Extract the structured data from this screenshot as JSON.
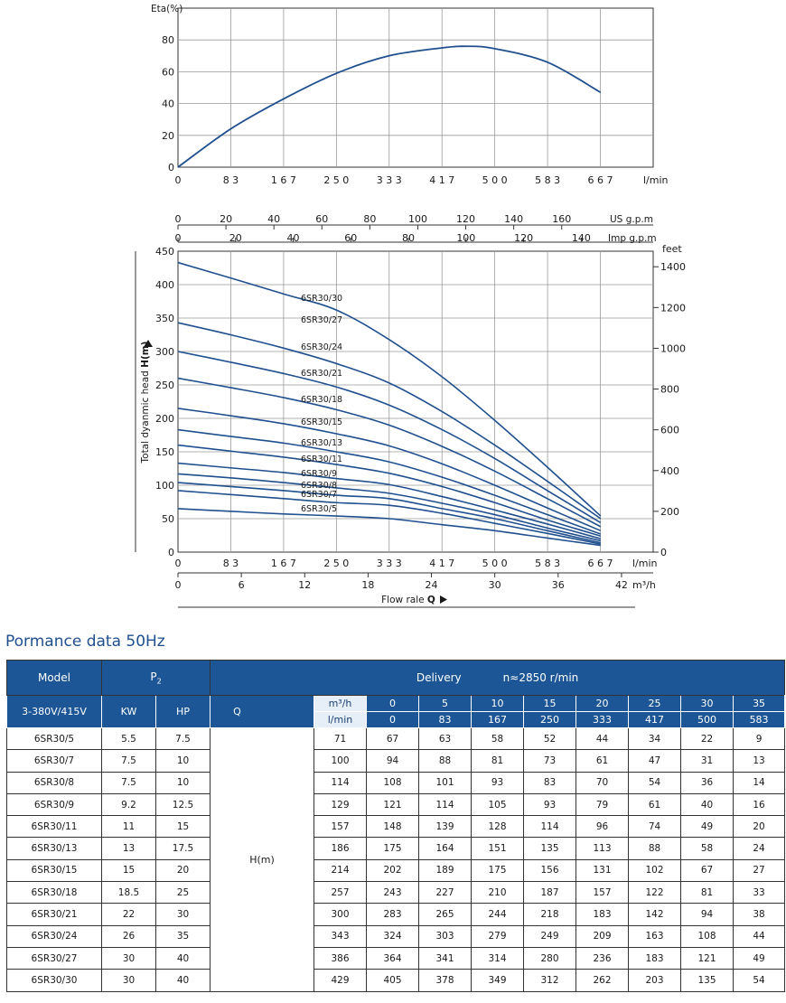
{
  "eff_chart": {
    "ylabel": "Eta(%)",
    "xunit": "l/min",
    "yticks": [
      0,
      20,
      40,
      60,
      80
    ],
    "ylim": [
      0,
      100
    ],
    "xticks": [
      "0",
      "8 3",
      "1 6 7",
      "2 5 0",
      "3 3 3",
      "4 1 7",
      "5 0 0",
      "5 8 3",
      "6 6 7"
    ]
  },
  "head_chart": {
    "usgpm_label": "US g.p.m",
    "usgpm_ticks": [
      "0",
      "20",
      "40",
      "60",
      "80",
      "100",
      "120",
      "140",
      "160"
    ],
    "impgpm_label": "Imp g.p.m",
    "impgpm_ticks": [
      "0",
      "20",
      "40",
      "60",
      "80",
      "100",
      "120",
      "140"
    ],
    "feet_label": "feet",
    "feet_ticks": [
      "0",
      "200",
      "400",
      "600",
      "800",
      "1000",
      "1200",
      "1400"
    ],
    "ylabel_prefix": "Total dyanmic head ",
    "ylabel_bold": "H(m)",
    "yticks": [
      "0",
      "50",
      "100",
      "150",
      "200",
      "250",
      "300",
      "350",
      "400",
      "450"
    ],
    "ylim": [
      0,
      450
    ],
    "lmin_unit": "l/min",
    "lmin_ticks": [
      "0",
      "8 3",
      "1 6 7",
      "2 5 0",
      "3 3 3",
      "4 1 7",
      "5 0 0",
      "5 8 3",
      "6 6 7"
    ],
    "m3h_unit": "m³/h",
    "m3h_ticks": [
      "0",
      "6",
      "12",
      "18",
      "24",
      "30",
      "36",
      "42"
    ],
    "xlabel_prefix": "Flow rale ",
    "xlabel_bold": "Q"
  },
  "chart_data": [
    {
      "type": "line",
      "ylabel": "Eta(%)",
      "xlabel": "l/min",
      "xlim": [
        0,
        750
      ],
      "ylim": [
        0,
        100
      ],
      "grid": true,
      "series": [
        {
          "x": [
            0,
            83,
            167,
            250,
            333,
            417,
            458,
            500,
            583,
            667
          ],
          "y": [
            0,
            24,
            43,
            59,
            70,
            75,
            76,
            74.5,
            66,
            47
          ]
        }
      ]
    },
    {
      "type": "line",
      "ylabel": "Total dyanmic head H(m)",
      "xlabel": "Flow rale Q",
      "xunits": [
        "l/min",
        "m³/h",
        "US g.p.m",
        "Imp g.p.m"
      ],
      "xlim_lmin": [
        0,
        750
      ],
      "ylim": [
        0,
        450
      ],
      "secondary_y": {
        "label": "feet",
        "range": [
          0,
          1476
        ]
      },
      "grid": true,
      "x_lmin": [
        0,
        83,
        167,
        250,
        333,
        417,
        500,
        583,
        667
      ],
      "series": [
        {
          "name": "6SR30/5",
          "values": [
            65,
            61,
            57,
            54,
            50,
            41,
            32,
            21,
            10
          ]
        },
        {
          "name": "6SR30/7",
          "values": [
            92,
            86,
            80,
            74,
            70,
            58,
            43,
            28,
            12
          ]
        },
        {
          "name": "6SR30/8",
          "values": [
            104,
            98,
            92,
            85,
            80,
            65,
            50,
            32,
            14
          ]
        },
        {
          "name": "6SR30/9",
          "values": [
            117,
            111,
            104,
            96,
            88,
            73,
            56,
            36,
            17
          ]
        },
        {
          "name": "6SR30/11",
          "values": [
            133,
            126,
            119,
            110,
            101,
            83,
            63,
            42,
            20
          ]
        },
        {
          "name": "6SR30/13",
          "values": [
            160,
            151,
            142,
            131,
            118,
            98,
            74,
            48,
            24
          ]
        },
        {
          "name": "6SR30/15",
          "values": [
            183,
            173,
            163,
            150,
            135,
            112,
            85,
            56,
            27
          ]
        },
        {
          "name": "6SR30/18",
          "values": [
            215,
            204,
            192,
            177,
            159,
            132,
            100,
            66,
            32
          ]
        },
        {
          "name": "6SR30/21",
          "values": [
            260,
            246,
            231,
            213,
            190,
            158,
            121,
            80,
            38
          ]
        },
        {
          "name": "6SR30/24",
          "values": [
            300,
            284,
            267,
            247,
            220,
            183,
            140,
            92,
            44
          ]
        },
        {
          "name": "6SR30/27",
          "values": [
            343,
            325,
            305,
            282,
            253,
            210,
            160,
            106,
            50
          ]
        },
        {
          "name": "6SR30/30",
          "values": [
            390,
            370,
            349,
            323,
            289,
            240,
            183,
            121,
            54
          ]
        }
      ],
      "series_label_order": [
        "6SR30/30",
        "6SR30/27",
        "6SR30/24",
        "6SR30/21",
        "6SR30/18",
        "6SR30/15",
        "6SR30/13",
        "6SR30/11",
        "6SR30/9",
        "6SR30/8",
        "6SR30/7",
        "6SR30/5"
      ],
      "top_series_head": [
        433,
        410,
        386,
        362,
        318,
        262,
        197,
        127,
        54
      ]
    }
  ],
  "title": "Pormance data 50Hz",
  "table": {
    "h_model": "Model",
    "h_p": "P",
    "h_p_sub": "2",
    "h_delivery": "Delivery",
    "h_speed": "n≈2850 r/min",
    "h_voltage": "3-380V/415V",
    "h_kw": "KW",
    "h_hp": "HP",
    "h_q": "Q",
    "h_m3h": "m³/h",
    "h_lmin": "l/min",
    "m3h": [
      "0",
      "5",
      "10",
      "15",
      "20",
      "25",
      "30",
      "35",
      "40"
    ],
    "lmin": [
      "0",
      "83",
      "167",
      "250",
      "333",
      "417",
      "500",
      "583",
      "667"
    ],
    "hm_label": "H(m)",
    "rows": [
      {
        "model": "6SR30/5",
        "kw": "5.5",
        "hp": "7.5",
        "h": [
          "71",
          "67",
          "63",
          "58",
          "52",
          "44",
          "34",
          "22",
          "9"
        ]
      },
      {
        "model": "6SR30/7",
        "kw": "7.5",
        "hp": "10",
        "h": [
          "100",
          "94",
          "88",
          "81",
          "73",
          "61",
          "47",
          "31",
          "13"
        ]
      },
      {
        "model": "6SR30/8",
        "kw": "7.5",
        "hp": "10",
        "h": [
          "114",
          "108",
          "101",
          "93",
          "83",
          "70",
          "54",
          "36",
          "14"
        ]
      },
      {
        "model": "6SR30/9",
        "kw": "9.2",
        "hp": "12.5",
        "h": [
          "129",
          "121",
          "114",
          "105",
          "93",
          "79",
          "61",
          "40",
          "16"
        ]
      },
      {
        "model": "6SR30/11",
        "kw": "11",
        "hp": "15",
        "h": [
          "157",
          "148",
          "139",
          "128",
          "114",
          "96",
          "74",
          "49",
          "20"
        ]
      },
      {
        "model": "6SR30/13",
        "kw": "13",
        "hp": "17.5",
        "h": [
          "186",
          "175",
          "164",
          "151",
          "135",
          "113",
          "88",
          "58",
          "24"
        ]
      },
      {
        "model": "6SR30/15",
        "kw": "15",
        "hp": "20",
        "h": [
          "214",
          "202",
          "189",
          "175",
          "156",
          "131",
          "102",
          "67",
          "27"
        ]
      },
      {
        "model": "6SR30/18",
        "kw": "18.5",
        "hp": "25",
        "h": [
          "257",
          "243",
          "227",
          "210",
          "187",
          "157",
          "122",
          "81",
          "33"
        ]
      },
      {
        "model": "6SR30/21",
        "kw": "22",
        "hp": "30",
        "h": [
          "300",
          "283",
          "265",
          "244",
          "218",
          "183",
          "142",
          "94",
          "38"
        ]
      },
      {
        "model": "6SR30/24",
        "kw": "26",
        "hp": "35",
        "h": [
          "343",
          "324",
          "303",
          "279",
          "249",
          "209",
          "163",
          "108",
          "44"
        ]
      },
      {
        "model": "6SR30/27",
        "kw": "30",
        "hp": "40",
        "h": [
          "386",
          "364",
          "341",
          "314",
          "280",
          "236",
          "183",
          "121",
          "49"
        ]
      },
      {
        "model": "6SR30/30",
        "kw": "30",
        "hp": "40",
        "h": [
          "429",
          "405",
          "378",
          "349",
          "312",
          "262",
          "203",
          "135",
          "54"
        ]
      }
    ]
  },
  "colors": {
    "curve": "#1f4f8f",
    "header_bg": "#1c5696",
    "grid": "#9a9a9a"
  }
}
